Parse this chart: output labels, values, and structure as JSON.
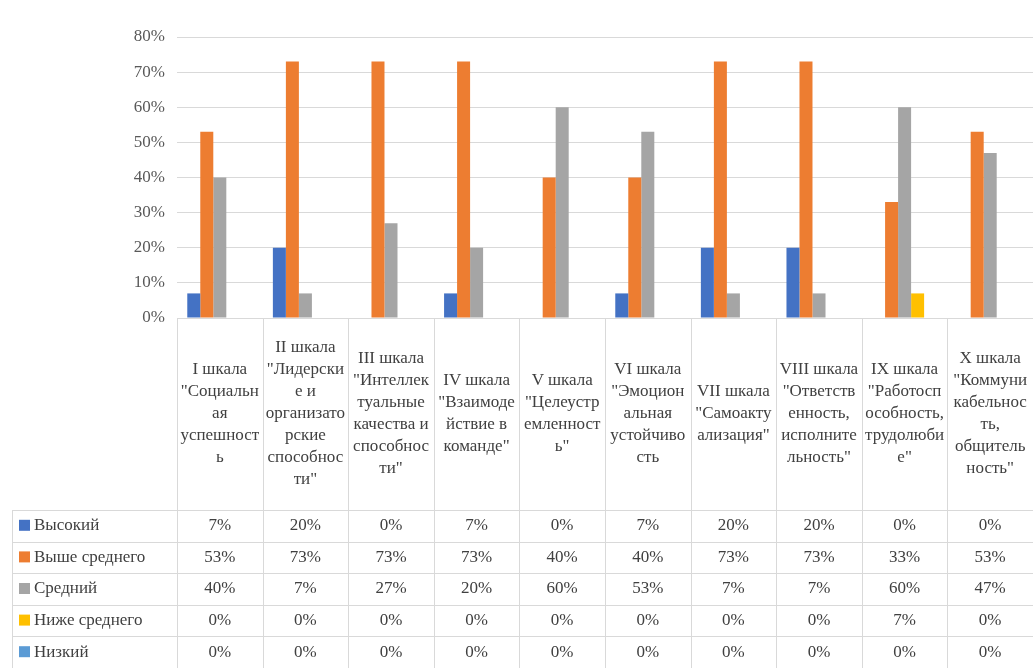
{
  "chart_data": {
    "type": "bar",
    "categories": [
      "I шкала \"Социальная успешность",
      "II шкала \"Лидерские и организаторские способности\"",
      "III шкала \"Интеллектуальные качества и способности\"",
      "IV шкала \"Взаимодействие в команде\"",
      "V  шкала \"Целеустремленность\"",
      "VI шкала \"Эмоциональная устойчивость",
      "VII шкала \"Самоактуализация\"",
      "VIII шкала \"Ответственность, исполнительность\"",
      "IX шкала \"Работоспособность, трудолюбие\"",
      "X шкала \"Коммуникабельность, общительность\""
    ],
    "series": [
      {
        "name": "Высокий",
        "color": "#4472c4",
        "values": [
          7,
          20,
          0,
          7,
          0,
          7,
          20,
          20,
          0,
          0
        ],
        "value_labels": [
          "7%",
          "20%",
          "0%",
          "7%",
          "0%",
          "7%",
          "20%",
          "20%",
          "0%",
          "0%"
        ]
      },
      {
        "name": "Выше среднего",
        "color": "#ed7d31",
        "values": [
          53,
          73,
          73,
          73,
          40,
          40,
          73,
          73,
          33,
          53
        ],
        "value_labels": [
          "53%",
          "73%",
          "73%",
          "73%",
          "40%",
          "40%",
          "73%",
          "73%",
          "33%",
          "53%"
        ]
      },
      {
        "name": "Средний",
        "color": "#a5a5a5",
        "values": [
          40,
          7,
          27,
          20,
          60,
          53,
          7,
          7,
          60,
          47
        ],
        "value_labels": [
          "40%",
          "7%",
          "27%",
          "20%",
          "60%",
          "53%",
          "7%",
          "7%",
          "60%",
          "47%"
        ]
      },
      {
        "name": "Ниже среднего",
        "color": "#ffc000",
        "values": [
          0,
          0,
          0,
          0,
          0,
          0,
          0,
          0,
          7,
          0
        ],
        "value_labels": [
          "0%",
          "0%",
          "0%",
          "0%",
          "0%",
          "0%",
          "0%",
          "0%",
          "7%",
          "0%"
        ]
      },
      {
        "name": "Низкий",
        "color": "#5b9bd5",
        "values": [
          0,
          0,
          0,
          0,
          0,
          0,
          0,
          0,
          0,
          0
        ],
        "value_labels": [
          "0%",
          "0%",
          "0%",
          "0%",
          "0%",
          "0%",
          "0%",
          "0%",
          "0%",
          "0%"
        ]
      }
    ],
    "ylim": [
      0,
      80
    ],
    "yticks": [
      {
        "value": 0,
        "label": "0%"
      },
      {
        "value": 10,
        "label": "10%"
      },
      {
        "value": 20,
        "label": "20%"
      },
      {
        "value": 30,
        "label": "30%"
      },
      {
        "value": 40,
        "label": "40%"
      },
      {
        "value": 50,
        "label": "50%"
      },
      {
        "value": 60,
        "label": "60%"
      },
      {
        "value": 70,
        "label": "70%"
      },
      {
        "value": 80,
        "label": "80%"
      }
    ],
    "grid": "y",
    "legend": "bottom"
  }
}
